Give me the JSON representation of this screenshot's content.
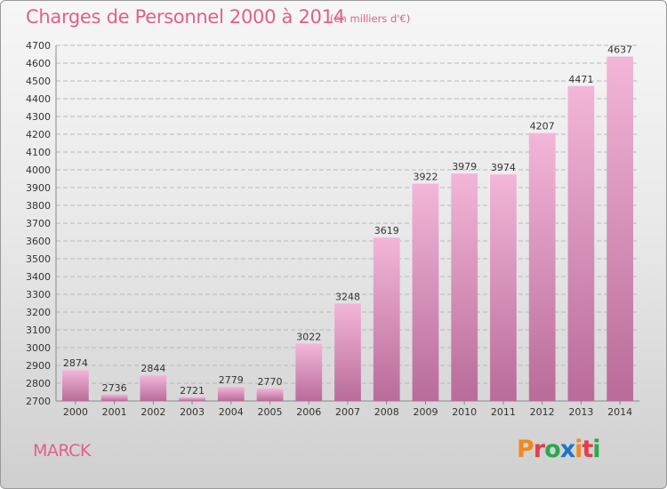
{
  "header": {
    "title": "Charges de Personnel 2000 à 2014",
    "subtitle": "(en milliers d'€)"
  },
  "footer": {
    "commune": "MARCK",
    "logo_text": "Proxiti",
    "logo_colors": [
      "#f08a1e",
      "#e63c50",
      "#2aa84a",
      "#1e73c8",
      "#f08a1e",
      "#e63c50",
      "#2aa84a"
    ]
  },
  "colors": {
    "bar_light": "#f2b6d8",
    "bar_dark": "#b96b99",
    "grid": "#b8b8b8",
    "title": "#e0608a"
  },
  "chart_data": {
    "type": "bar",
    "title": "Charges de Personnel 2000 à 2014",
    "subtitle": "(en milliers d'€)",
    "categories": [
      "2000",
      "2001",
      "2002",
      "2003",
      "2004",
      "2005",
      "2006",
      "2007",
      "2008",
      "2009",
      "2010",
      "2011",
      "2012",
      "2013",
      "2014"
    ],
    "values": [
      2874,
      2736,
      2844,
      2721,
      2779,
      2770,
      3022,
      3248,
      3619,
      3922,
      3979,
      3974,
      4207,
      4471,
      4637
    ],
    "ylim": [
      2700,
      4700
    ],
    "yticks": [
      2700,
      2800,
      2900,
      3000,
      3100,
      3200,
      3300,
      3400,
      3500,
      3600,
      3700,
      3800,
      3900,
      4000,
      4100,
      4200,
      4300,
      4400,
      4500,
      4600,
      4700
    ],
    "grid": true,
    "data_labels": true
  }
}
